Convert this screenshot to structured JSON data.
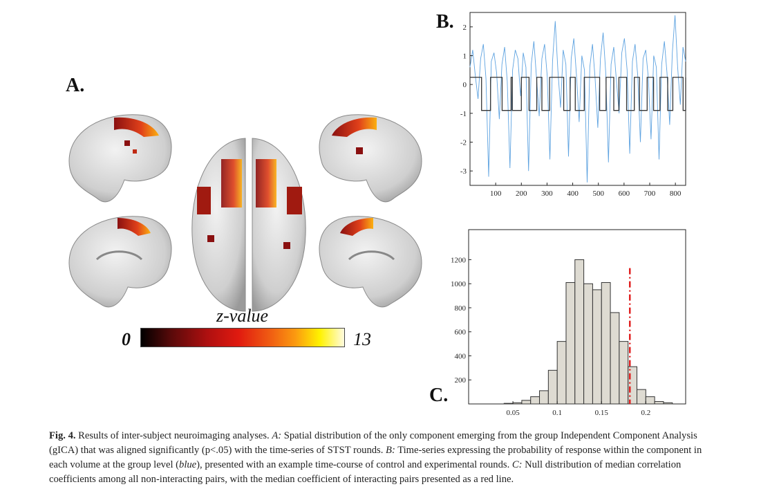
{
  "panel_a": {
    "label": "A.",
    "colorbar": {
      "title": "z-value",
      "min_label": "0",
      "max_label": "13"
    }
  },
  "chart_data": [
    {
      "panel": "B.",
      "type": "line",
      "series": [
        {
          "values_description_free": true,
          "values": [
            0.6,
            1.2,
            0.3,
            -0.5,
            0.9,
            1.4,
            0.2,
            -3.2,
            0.8,
            1.1,
            0.4,
            -1.2,
            0.7,
            1.3,
            0.1,
            -2.9,
            0.5,
            1.2,
            0.9,
            -0.4,
            1.1,
            0.6,
            -3.0,
            0.7,
            1.5,
            0.2,
            -1.1,
            0.9,
            1.4,
            0.3,
            -2.6,
            0.8,
            2.2,
            0.5,
            -0.8,
            1.2,
            0.7,
            -2.5,
            0.9,
            1.6,
            0.3,
            -1.3,
            1.0,
            0.5,
            -3.4,
            0.6,
            1.4,
            0.2,
            -1.5,
            0.9,
            1.8,
            0.4,
            -2.7,
            0.7,
            1.3,
            0.1,
            -1.0,
            1.1,
            1.6,
            0.5,
            -2.4,
            0.8,
            1.4,
            0.3,
            -2.0,
            0.9,
            1.2,
            0.2,
            -1.9,
            1.0,
            0.6,
            -2.6,
            0.7,
            1.5,
            0.4,
            -1.4,
            1.1,
            2.4,
            0.6,
            -0.7,
            1.3,
            0.8
          ]
        }
      ],
      "block_design": {
        "high": 0.25,
        "low": -0.9,
        "low_intervals": [
          [
            45,
            80
          ],
          [
            125,
            160
          ],
          [
            165,
            200
          ],
          [
            230,
            260
          ],
          [
            280,
            310
          ],
          [
            365,
            390
          ],
          [
            410,
            445
          ],
          [
            505,
            530
          ],
          [
            560,
            580
          ],
          [
            610,
            640
          ],
          [
            660,
            690
          ],
          [
            715,
            740
          ],
          [
            770,
            790
          ],
          [
            830,
            840
          ]
        ]
      },
      "xlim": [
        0,
        840
      ],
      "ylim": [
        -3.5,
        2.5
      ],
      "xticks": [
        100,
        200,
        300,
        400,
        500,
        600,
        700,
        800
      ],
      "yticks": [
        2,
        1,
        0,
        -1,
        -2,
        -3
      ]
    },
    {
      "panel": "C.",
      "type": "bar",
      "bins_x": [
        0.0,
        0.01,
        0.02,
        0.03,
        0.04,
        0.05,
        0.06,
        0.07,
        0.08,
        0.09,
        0.1,
        0.11,
        0.12,
        0.13,
        0.14,
        0.15,
        0.16,
        0.17,
        0.18,
        0.19,
        0.2,
        0.21,
        0.22,
        0.23
      ],
      "values": [
        0,
        0,
        0,
        0,
        5,
        10,
        30,
        60,
        110,
        280,
        520,
        1010,
        1200,
        1000,
        950,
        1010,
        760,
        520,
        310,
        120,
        60,
        20,
        10,
        0
      ],
      "bin_width": 0.01,
      "reference_line_x": 0.182,
      "xlim": [
        0.0,
        0.245
      ],
      "ylim": [
        0,
        1450
      ],
      "xticks": [
        0.05,
        0.1,
        0.15,
        0.2
      ],
      "yticks": [
        200,
        400,
        600,
        800,
        1000,
        1200
      ]
    }
  ],
  "caption": {
    "fig": "Fig. 4.",
    "p1": " Results of inter-subject neuroimaging analyses. ",
    "a": "A:",
    "p2": " Spatial distribution of the only component emerging from the group Independent Component Analysis (gICA) that was aligned significantly (p<.05) with the time-series of STST rounds. ",
    "b": "B:",
    "p3": " Time-series expressing the probability of response within the component in each volume at the group level (",
    "blue": "blue",
    "p4": "), presented with an example time-course of control and experimental rounds. ",
    "c": "C:",
    "p5": " Null distribution of median correlation coefficients among all non-interacting pairs, with the median coefficient of interacting pairs presented as a red line."
  },
  "colors": {
    "trace": "#5da2e0",
    "hist_fill": "#dedbd2",
    "red_line": "#e02020"
  }
}
